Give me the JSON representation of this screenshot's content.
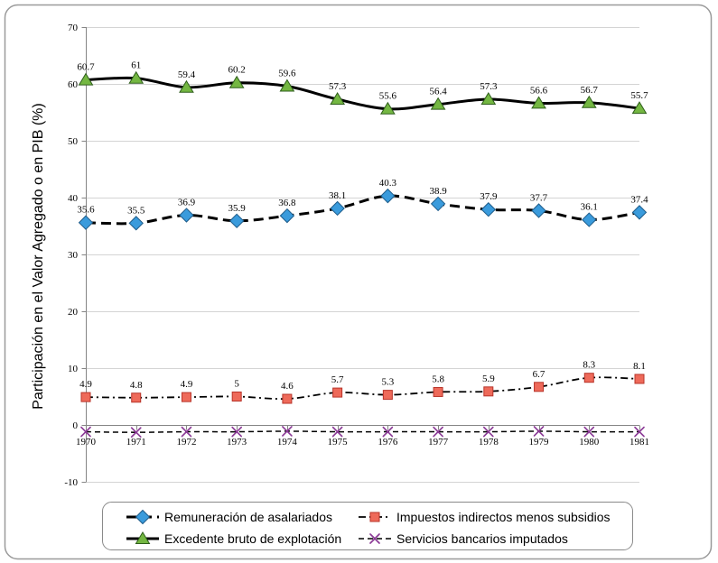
{
  "chart_data": {
    "type": "line",
    "categories": [
      "1970",
      "1971",
      "1972",
      "1973",
      "1974",
      "1975",
      "1976",
      "1977",
      "1978",
      "1979",
      "1980",
      "1981"
    ],
    "ylabel": "Participación en el Valor Agregado o en PIB (%)",
    "ylim": [
      -10,
      70
    ],
    "yticks": [
      -10,
      0,
      10,
      20,
      30,
      40,
      50,
      60,
      70
    ],
    "grid": true,
    "smooth": true,
    "legend": "bottom",
    "series": [
      {
        "name": "Remuneración de asalariados",
        "values": [
          35.6,
          35.5,
          36.9,
          35.9,
          36.8,
          38.1,
          40.3,
          38.9,
          37.9,
          37.7,
          36.1,
          37.4
        ],
        "marker": "diamond",
        "line_color": "#000000",
        "marker_color": "#3A9BDC",
        "marker_edge": "#1E5C8A",
        "data_labels": true
      },
      {
        "name": "Impuestos indirectos menos subsidios",
        "values": [
          4.9,
          4.8,
          4.9,
          5,
          4.6,
          5.7,
          5.3,
          5.8,
          5.9,
          6.7,
          8.3,
          8.1
        ],
        "marker": "square",
        "line_color": "#000000",
        "marker_color": "#EE6A5A",
        "marker_edge": "#B8342A",
        "data_labels": true
      },
      {
        "name": "Excedente bruto de explotación",
        "values": [
          60.7,
          61,
          59.4,
          60.2,
          59.6,
          57.3,
          55.6,
          56.4,
          57.3,
          56.6,
          56.7,
          55.7
        ],
        "marker": "triangle",
        "line_color": "#000000",
        "marker_color": "#74B742",
        "marker_edge": "#2E5E1B",
        "data_labels": true
      },
      {
        "name": "Servicios bancarios imputados",
        "values": [
          -1.2,
          -1.3,
          -1.2,
          -1.2,
          -1.1,
          -1.2,
          -1.2,
          -1.2,
          -1.2,
          -1.1,
          -1.2,
          -1.2
        ],
        "marker": "x",
        "line_color": "#000000",
        "marker_color": "#8B3A96",
        "data_labels": false
      }
    ]
  }
}
